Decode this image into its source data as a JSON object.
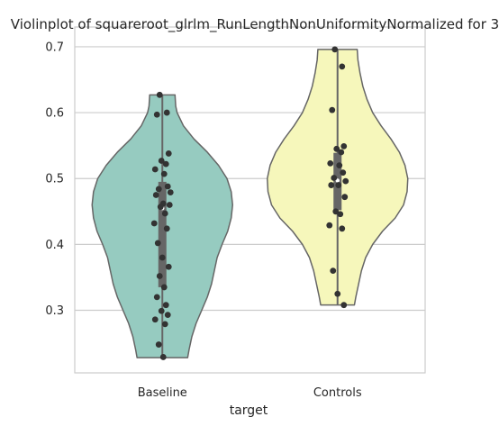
{
  "chart_data": {
    "type": "violin",
    "title": "Violinplot of squareroot_glrlm_RunLengthNonUniformityNormalized for 3",
    "xlabel": "target",
    "ylabel": "",
    "categories": [
      "Baseline",
      "Controls"
    ],
    "ylim": [
      0.205,
      0.73
    ],
    "yticks": [
      0.3,
      0.4,
      0.5,
      0.6,
      0.7
    ],
    "ytick_labels": [
      "0.3",
      "0.4",
      "0.5",
      "0.6",
      "0.7"
    ],
    "grid": true,
    "colors": {
      "Baseline": "#96cbc0",
      "Controls": "#f6f7bb",
      "outline": "#666666",
      "points": "#333333",
      "box": "#666666",
      "grid": "#cccccc",
      "axes": "#cccccc"
    },
    "series": [
      {
        "category": "Baseline",
        "range": [
          0.228,
          0.627
        ],
        "quartiles": [
          0.335,
          0.495
        ],
        "median": 0.455,
        "density": [
          [
            0.228,
            0.36
          ],
          [
            0.24,
            0.38
          ],
          [
            0.26,
            0.42
          ],
          [
            0.28,
            0.48
          ],
          [
            0.3,
            0.56
          ],
          [
            0.32,
            0.64
          ],
          [
            0.34,
            0.7
          ],
          [
            0.36,
            0.74
          ],
          [
            0.38,
            0.78
          ],
          [
            0.4,
            0.85
          ],
          [
            0.42,
            0.93
          ],
          [
            0.44,
            0.98
          ],
          [
            0.46,
            1.0
          ],
          [
            0.48,
            0.98
          ],
          [
            0.5,
            0.92
          ],
          [
            0.52,
            0.8
          ],
          [
            0.54,
            0.64
          ],
          [
            0.56,
            0.45
          ],
          [
            0.58,
            0.3
          ],
          [
            0.6,
            0.21
          ],
          [
            0.61,
            0.19
          ],
          [
            0.627,
            0.18
          ]
        ],
        "points": [
          0.627,
          0.6,
          0.597,
          0.538,
          0.527,
          0.522,
          0.514,
          0.507,
          0.488,
          0.484,
          0.479,
          0.475,
          0.462,
          0.46,
          0.457,
          0.447,
          0.432,
          0.424,
          0.402,
          0.38,
          0.366,
          0.352,
          0.335,
          0.32,
          0.308,
          0.299,
          0.293,
          0.286,
          0.279,
          0.248,
          0.229
        ]
      },
      {
        "category": "Controls",
        "range": [
          0.308,
          0.696
        ],
        "quartiles": [
          0.452,
          0.539
        ],
        "median": 0.497,
        "density": [
          [
            0.308,
            0.24
          ],
          [
            0.32,
            0.26
          ],
          [
            0.34,
            0.3
          ],
          [
            0.36,
            0.34
          ],
          [
            0.38,
            0.4
          ],
          [
            0.4,
            0.5
          ],
          [
            0.42,
            0.64
          ],
          [
            0.44,
            0.82
          ],
          [
            0.46,
            0.94
          ],
          [
            0.48,
            0.99
          ],
          [
            0.5,
            1.0
          ],
          [
            0.52,
            0.96
          ],
          [
            0.54,
            0.88
          ],
          [
            0.56,
            0.76
          ],
          [
            0.58,
            0.62
          ],
          [
            0.6,
            0.5
          ],
          [
            0.62,
            0.42
          ],
          [
            0.64,
            0.36
          ],
          [
            0.66,
            0.32
          ],
          [
            0.68,
            0.29
          ],
          [
            0.696,
            0.28
          ]
        ],
        "points": [
          0.696,
          0.67,
          0.604,
          0.549,
          0.545,
          0.54,
          0.523,
          0.52,
          0.509,
          0.501,
          0.496,
          0.49,
          0.49,
          0.472,
          0.45,
          0.446,
          0.429,
          0.424,
          0.36,
          0.325,
          0.308
        ]
      }
    ]
  }
}
